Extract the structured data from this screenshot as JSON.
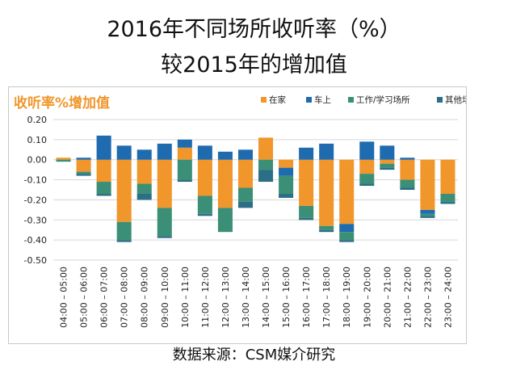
{
  "headline": {
    "line1": "2016年不同场所收听率（%）",
    "line2": "较2015年的增加值"
  },
  "source": "数据来源：CSM媒介研究",
  "chart_data": {
    "type": "bar",
    "stacked": true,
    "title": "收听率%增加值",
    "title_color": "#f0962b",
    "ylim": [
      -0.5,
      0.2
    ],
    "yticks": [
      "0.20",
      "0.10",
      "0.00",
      "-0.10",
      "-0.20",
      "-0.30",
      "-0.40",
      "-0.50"
    ],
    "grid": true,
    "legend_position": "top-right",
    "categories": [
      "04:00 – 05:00",
      "05:00 – 06:00",
      "06:00 – 07:00",
      "07:00 – 08:00",
      "08:00 – 09:00",
      "09:00 – 10:00",
      "10:00 – 11:00",
      "11:00 – 12:00",
      "12:00 – 13:00",
      "13:00 – 14:00",
      "14:00 – 15:00",
      "15:00 – 16:00",
      "16:00 – 17:00",
      "17:00 – 18:00",
      "18:00 – 19:00",
      "19:00 – 20:00",
      "20:00 – 21:00",
      "21:00 – 22:00",
      "22:00 – 23:00",
      "23:00 – 24:00"
    ],
    "series": [
      {
        "name": "在家",
        "color": "#f0962b",
        "values": [
          0.01,
          -0.06,
          -0.11,
          -0.31,
          -0.12,
          -0.24,
          0.06,
          -0.18,
          -0.24,
          -0.14,
          0.11,
          -0.04,
          -0.23,
          -0.33,
          -0.32,
          -0.07,
          -0.02,
          -0.1,
          -0.25,
          -0.17
        ]
      },
      {
        "name": "车上",
        "color": "#1f6bb0",
        "values": [
          0,
          0.01,
          0.12,
          0.07,
          0.05,
          0.08,
          0.04,
          0.07,
          0.04,
          0.05,
          0,
          -0.04,
          0.06,
          0.08,
          -0.04,
          0.09,
          0.07,
          0.01,
          -0.02,
          0
        ]
      },
      {
        "name": "工作/学习场所",
        "color": "#3b8f76",
        "values": [
          -0.01,
          -0.01,
          -0.06,
          -0.09,
          -0.05,
          -0.14,
          -0.1,
          -0.09,
          -0.12,
          -0.07,
          -0.05,
          -0.09,
          -0.06,
          -0.02,
          -0.04,
          -0.05,
          -0.02,
          -0.04,
          -0.01,
          -0.04
        ]
      },
      {
        "name": "其他场所",
        "color": "#2b6e86",
        "values": [
          0,
          -0.01,
          -0.01,
          -0.01,
          -0.03,
          -0.01,
          -0.01,
          -0.01,
          0,
          -0.03,
          -0.06,
          -0.02,
          -0.01,
          -0.01,
          -0.01,
          -0.01,
          -0.01,
          -0.01,
          -0.01,
          -0.01
        ]
      }
    ]
  }
}
